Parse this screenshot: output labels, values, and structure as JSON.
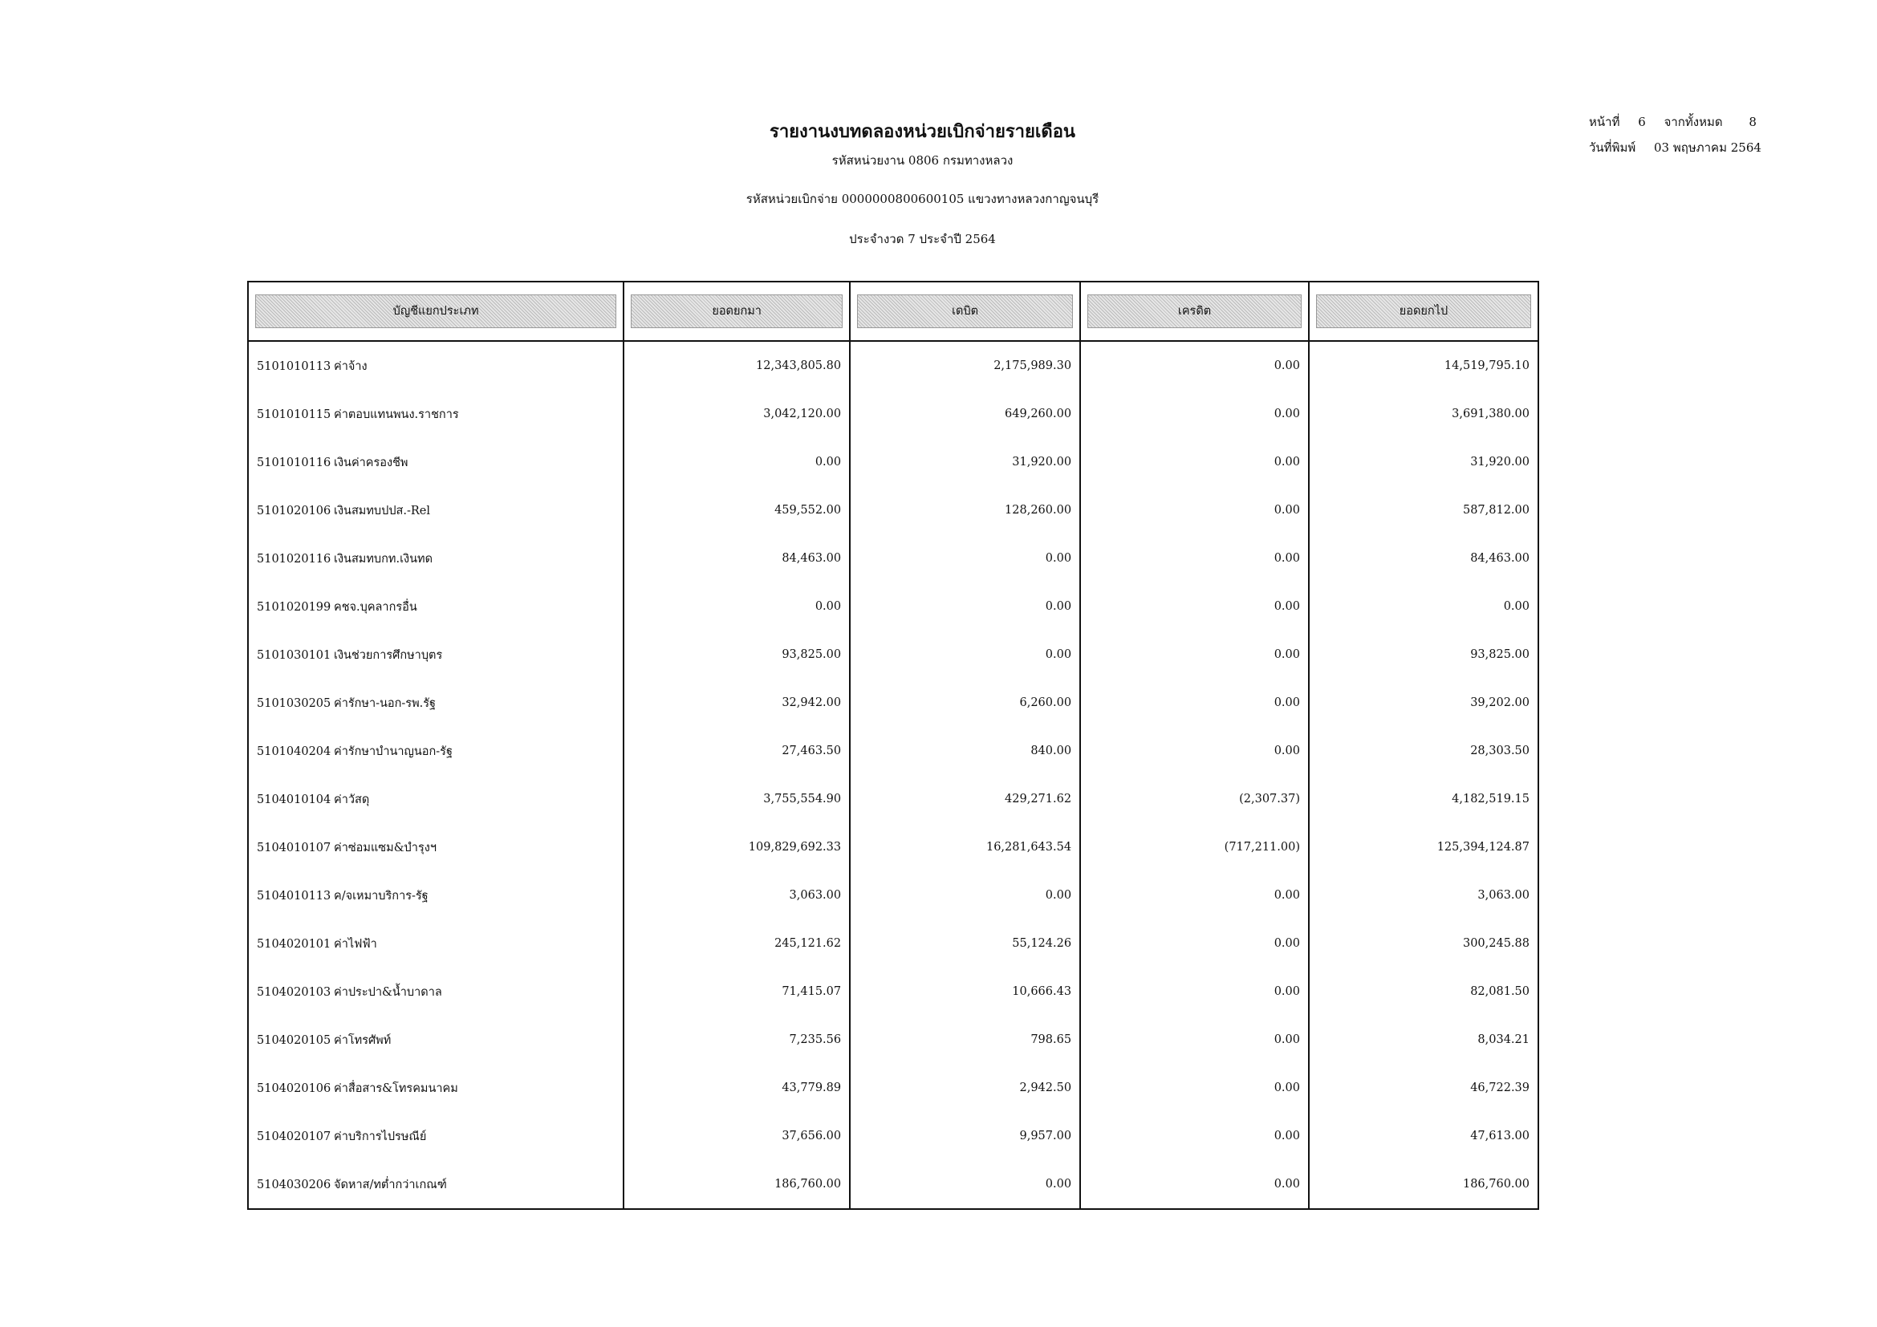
{
  "report": {
    "title": "รายงานงบทดลองหน่วยเบิกจ่ายรายเดือน",
    "agency": "รหัสหน่วยงาน 0806 กรมทางหลวง",
    "disbursing_unit": "รหัสหน่วยเบิกจ่าย 0000000800600105 แขวงทางหลวงกาญจนบุรี",
    "period": "ประจำงวด 7 ประจำปี 2564",
    "page_label": "หน้าที่",
    "page_number": "6",
    "total_label": "จากทั้งหมด",
    "total_pages": "8",
    "print_date_label": "วันที่พิมพ์",
    "print_date": "03 พฤษภาคม 2564"
  },
  "table": {
    "headers": [
      "บัญชีแยกประเภท",
      "ยอดยกมา",
      "เดบิต",
      "เครดิต",
      "ยอดยกไป"
    ],
    "rows": [
      {
        "code": "5101010113",
        "name": "ค่าจ้าง",
        "opening": "12,343,805.80",
        "debit": "2,175,989.30",
        "credit": "0.00",
        "closing": "14,519,795.10"
      },
      {
        "code": "5101010115",
        "name": "ค่าตอบแทนพนง.ราชการ",
        "opening": "3,042,120.00",
        "debit": "649,260.00",
        "credit": "0.00",
        "closing": "3,691,380.00"
      },
      {
        "code": "5101010116",
        "name": "เงินค่าครองชีพ",
        "opening": "0.00",
        "debit": "31,920.00",
        "credit": "0.00",
        "closing": "31,920.00"
      },
      {
        "code": "5101020106",
        "name": "เงินสมทบปปส.-Rel",
        "opening": "459,552.00",
        "debit": "128,260.00",
        "credit": "0.00",
        "closing": "587,812.00"
      },
      {
        "code": "5101020116",
        "name": "เงินสมทบกท.เงินทด",
        "opening": "84,463.00",
        "debit": "0.00",
        "credit": "0.00",
        "closing": "84,463.00"
      },
      {
        "code": "5101020199",
        "name": "คชจ.บุคลากรอื่น",
        "opening": "0.00",
        "debit": "0.00",
        "credit": "0.00",
        "closing": "0.00"
      },
      {
        "code": "5101030101",
        "name": "เงินช่วยการศึกษาบุตร",
        "opening": "93,825.00",
        "debit": "0.00",
        "credit": "0.00",
        "closing": "93,825.00"
      },
      {
        "code": "5101030205",
        "name": "ค่ารักษา-นอก-รพ.รัฐ",
        "opening": "32,942.00",
        "debit": "6,260.00",
        "credit": "0.00",
        "closing": "39,202.00"
      },
      {
        "code": "5101040204",
        "name": "ค่ารักษาบำนาญนอก-รัฐ",
        "opening": "27,463.50",
        "debit": "840.00",
        "credit": "0.00",
        "closing": "28,303.50"
      },
      {
        "code": "5104010104",
        "name": "ค่าวัสดุ",
        "opening": "3,755,554.90",
        "debit": "429,271.62",
        "credit": "(2,307.37)",
        "closing": "4,182,519.15"
      },
      {
        "code": "5104010107",
        "name": "ค่าซ่อมแซม&บำรุงฯ",
        "opening": "109,829,692.33",
        "debit": "16,281,643.54",
        "credit": "(717,211.00)",
        "closing": "125,394,124.87"
      },
      {
        "code": "5104010113",
        "name": "ค/จเหมาบริการ-รัฐ",
        "opening": "3,063.00",
        "debit": "0.00",
        "credit": "0.00",
        "closing": "3,063.00"
      },
      {
        "code": "5104020101",
        "name": "ค่าไฟฟ้า",
        "opening": "245,121.62",
        "debit": "55,124.26",
        "credit": "0.00",
        "closing": "300,245.88"
      },
      {
        "code": "5104020103",
        "name": "ค่าประปา&น้ำบาดาล",
        "opening": "71,415.07",
        "debit": "10,666.43",
        "credit": "0.00",
        "closing": "82,081.50"
      },
      {
        "code": "5104020105",
        "name": "ค่าโทรศัพท์",
        "opening": "7,235.56",
        "debit": "798.65",
        "credit": "0.00",
        "closing": "8,034.21"
      },
      {
        "code": "5104020106",
        "name": "ค่าสื่อสาร&โทรคมนาคม",
        "opening": "43,779.89",
        "debit": "2,942.50",
        "credit": "0.00",
        "closing": "46,722.39"
      },
      {
        "code": "5104020107",
        "name": "ค่าบริการไปรษณีย์",
        "opening": "37,656.00",
        "debit": "9,957.00",
        "credit": "0.00",
        "closing": "47,613.00"
      },
      {
        "code": "5104030206",
        "name": "จัดหาส/ทต่ำกว่าเกณฑ์",
        "opening": "186,760.00",
        "debit": "0.00",
        "credit": "0.00",
        "closing": "186,760.00"
      }
    ]
  }
}
